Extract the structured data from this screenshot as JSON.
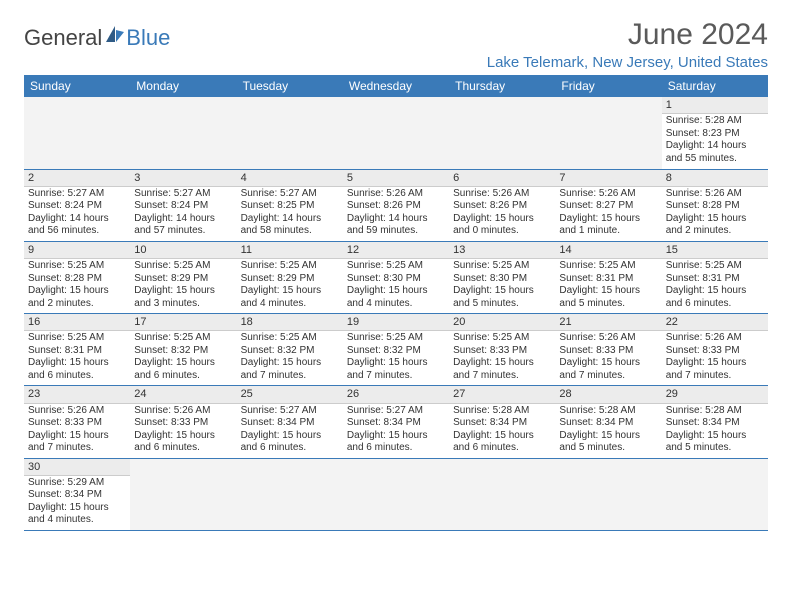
{
  "logo": {
    "text_general": "General",
    "text_blue": "Blue"
  },
  "title": "June 2024",
  "location": "Lake Telemark, New Jersey, United States",
  "colors": {
    "header_bg": "#3a7ab8",
    "header_text": "#ffffff",
    "daynum_bg": "#ececec",
    "accent": "#3a7ab8",
    "body_text": "#333333",
    "page_bg": "#ffffff"
  },
  "days_of_week": [
    "Sunday",
    "Monday",
    "Tuesday",
    "Wednesday",
    "Thursday",
    "Friday",
    "Saturday"
  ],
  "weeks": [
    [
      null,
      null,
      null,
      null,
      null,
      null,
      {
        "n": "1",
        "sunrise": "Sunrise: 5:28 AM",
        "sunset": "Sunset: 8:23 PM",
        "daylight": "Daylight: 14 hours and 55 minutes."
      }
    ],
    [
      {
        "n": "2",
        "sunrise": "Sunrise: 5:27 AM",
        "sunset": "Sunset: 8:24 PM",
        "daylight": "Daylight: 14 hours and 56 minutes."
      },
      {
        "n": "3",
        "sunrise": "Sunrise: 5:27 AM",
        "sunset": "Sunset: 8:24 PM",
        "daylight": "Daylight: 14 hours and 57 minutes."
      },
      {
        "n": "4",
        "sunrise": "Sunrise: 5:27 AM",
        "sunset": "Sunset: 8:25 PM",
        "daylight": "Daylight: 14 hours and 58 minutes."
      },
      {
        "n": "5",
        "sunrise": "Sunrise: 5:26 AM",
        "sunset": "Sunset: 8:26 PM",
        "daylight": "Daylight: 14 hours and 59 minutes."
      },
      {
        "n": "6",
        "sunrise": "Sunrise: 5:26 AM",
        "sunset": "Sunset: 8:26 PM",
        "daylight": "Daylight: 15 hours and 0 minutes."
      },
      {
        "n": "7",
        "sunrise": "Sunrise: 5:26 AM",
        "sunset": "Sunset: 8:27 PM",
        "daylight": "Daylight: 15 hours and 1 minute."
      },
      {
        "n": "8",
        "sunrise": "Sunrise: 5:26 AM",
        "sunset": "Sunset: 8:28 PM",
        "daylight": "Daylight: 15 hours and 2 minutes."
      }
    ],
    [
      {
        "n": "9",
        "sunrise": "Sunrise: 5:25 AM",
        "sunset": "Sunset: 8:28 PM",
        "daylight": "Daylight: 15 hours and 2 minutes."
      },
      {
        "n": "10",
        "sunrise": "Sunrise: 5:25 AM",
        "sunset": "Sunset: 8:29 PM",
        "daylight": "Daylight: 15 hours and 3 minutes."
      },
      {
        "n": "11",
        "sunrise": "Sunrise: 5:25 AM",
        "sunset": "Sunset: 8:29 PM",
        "daylight": "Daylight: 15 hours and 4 minutes."
      },
      {
        "n": "12",
        "sunrise": "Sunrise: 5:25 AM",
        "sunset": "Sunset: 8:30 PM",
        "daylight": "Daylight: 15 hours and 4 minutes."
      },
      {
        "n": "13",
        "sunrise": "Sunrise: 5:25 AM",
        "sunset": "Sunset: 8:30 PM",
        "daylight": "Daylight: 15 hours and 5 minutes."
      },
      {
        "n": "14",
        "sunrise": "Sunrise: 5:25 AM",
        "sunset": "Sunset: 8:31 PM",
        "daylight": "Daylight: 15 hours and 5 minutes."
      },
      {
        "n": "15",
        "sunrise": "Sunrise: 5:25 AM",
        "sunset": "Sunset: 8:31 PM",
        "daylight": "Daylight: 15 hours and 6 minutes."
      }
    ],
    [
      {
        "n": "16",
        "sunrise": "Sunrise: 5:25 AM",
        "sunset": "Sunset: 8:31 PM",
        "daylight": "Daylight: 15 hours and 6 minutes."
      },
      {
        "n": "17",
        "sunrise": "Sunrise: 5:25 AM",
        "sunset": "Sunset: 8:32 PM",
        "daylight": "Daylight: 15 hours and 6 minutes."
      },
      {
        "n": "18",
        "sunrise": "Sunrise: 5:25 AM",
        "sunset": "Sunset: 8:32 PM",
        "daylight": "Daylight: 15 hours and 7 minutes."
      },
      {
        "n": "19",
        "sunrise": "Sunrise: 5:25 AM",
        "sunset": "Sunset: 8:32 PM",
        "daylight": "Daylight: 15 hours and 7 minutes."
      },
      {
        "n": "20",
        "sunrise": "Sunrise: 5:25 AM",
        "sunset": "Sunset: 8:33 PM",
        "daylight": "Daylight: 15 hours and 7 minutes."
      },
      {
        "n": "21",
        "sunrise": "Sunrise: 5:26 AM",
        "sunset": "Sunset: 8:33 PM",
        "daylight": "Daylight: 15 hours and 7 minutes."
      },
      {
        "n": "22",
        "sunrise": "Sunrise: 5:26 AM",
        "sunset": "Sunset: 8:33 PM",
        "daylight": "Daylight: 15 hours and 7 minutes."
      }
    ],
    [
      {
        "n": "23",
        "sunrise": "Sunrise: 5:26 AM",
        "sunset": "Sunset: 8:33 PM",
        "daylight": "Daylight: 15 hours and 7 minutes."
      },
      {
        "n": "24",
        "sunrise": "Sunrise: 5:26 AM",
        "sunset": "Sunset: 8:33 PM",
        "daylight": "Daylight: 15 hours and 6 minutes."
      },
      {
        "n": "25",
        "sunrise": "Sunrise: 5:27 AM",
        "sunset": "Sunset: 8:34 PM",
        "daylight": "Daylight: 15 hours and 6 minutes."
      },
      {
        "n": "26",
        "sunrise": "Sunrise: 5:27 AM",
        "sunset": "Sunset: 8:34 PM",
        "daylight": "Daylight: 15 hours and 6 minutes."
      },
      {
        "n": "27",
        "sunrise": "Sunrise: 5:28 AM",
        "sunset": "Sunset: 8:34 PM",
        "daylight": "Daylight: 15 hours and 6 minutes."
      },
      {
        "n": "28",
        "sunrise": "Sunrise: 5:28 AM",
        "sunset": "Sunset: 8:34 PM",
        "daylight": "Daylight: 15 hours and 5 minutes."
      },
      {
        "n": "29",
        "sunrise": "Sunrise: 5:28 AM",
        "sunset": "Sunset: 8:34 PM",
        "daylight": "Daylight: 15 hours and 5 minutes."
      }
    ],
    [
      {
        "n": "30",
        "sunrise": "Sunrise: 5:29 AM",
        "sunset": "Sunset: 8:34 PM",
        "daylight": "Daylight: 15 hours and 4 minutes."
      },
      null,
      null,
      null,
      null,
      null,
      null
    ]
  ]
}
